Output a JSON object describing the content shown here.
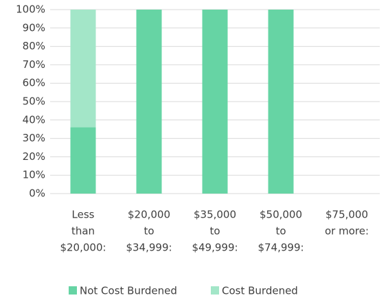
{
  "chart_data": {
    "type": "stacked_bar",
    "categories": [
      [
        "Less",
        "than",
        "$20,000:"
      ],
      [
        "$20,000",
        "to",
        "$34,999:"
      ],
      [
        "$35,000",
        "to",
        "$49,999:"
      ],
      [
        "$50,000",
        "to",
        "$74,999:"
      ],
      [
        "$75,000",
        "or more:"
      ]
    ],
    "series": [
      {
        "name": "Not Cost Burdened",
        "color": "#66d4a4",
        "values": [
          36,
          100,
          100,
          100,
          0
        ]
      },
      {
        "name": "Cost Burdened",
        "color": "#a3e6c8",
        "values": [
          64,
          0,
          0,
          0,
          0
        ]
      }
    ],
    "ylim": [
      0,
      100
    ],
    "yticks": [
      {
        "value": 0,
        "label": "0%"
      },
      {
        "value": 10,
        "label": "10%"
      },
      {
        "value": 20,
        "label": "20%"
      },
      {
        "value": 30,
        "label": "30%"
      },
      {
        "value": 40,
        "label": "40%"
      },
      {
        "value": 50,
        "label": "50%"
      },
      {
        "value": 60,
        "label": "60%"
      },
      {
        "value": 70,
        "label": "70%"
      },
      {
        "value": 80,
        "label": "80%"
      },
      {
        "value": 90,
        "label": "90%"
      },
      {
        "value": 100,
        "label": "100%"
      }
    ],
    "grid": true,
    "legend": "bottom"
  }
}
